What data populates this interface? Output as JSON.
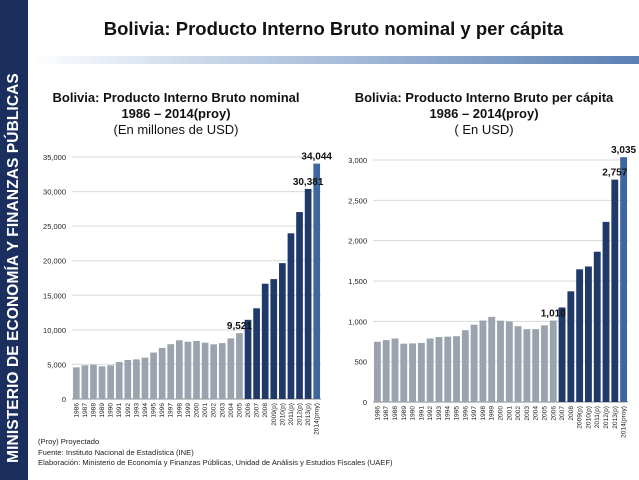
{
  "sidebar": {
    "text": "MINISTERIO DE ECONOMÍA Y FINANZAS PÚBLICAS"
  },
  "slide_title": "Bolivia: Producto Interno Bruto nominal y per cápita",
  "colors": {
    "sidebar": "#1b2f5e",
    "historic_bar": "#9aa3ae",
    "projected_bar": "#1f3a6a",
    "last_bar": "#3f679f"
  },
  "footer": {
    "line1": "(Proy) Proyectado",
    "line2": "Fuente: Instituto Nacional de Estadística (INE)",
    "line3": "Elaboración: Ministerio de Economía y Finanzas Públicas, Unidad de Análisis y Estudios Fiscales (UAEF)"
  },
  "chart_data": [
    {
      "type": "bar",
      "title": "Bolivia: Producto Interno Bruto nominal",
      "subtitle": "1986 – 2014(proy)",
      "units": "(En millones de USD)",
      "categories": [
        "1986",
        "1987",
        "1988",
        "1989",
        "1990",
        "1991",
        "1992",
        "1993",
        "1994",
        "1995",
        "1996",
        "1997",
        "1998",
        "1999",
        "2000",
        "2001",
        "2002",
        "2003",
        "2004",
        "2005",
        "2006",
        "2007",
        "2008",
        "2009(p)",
        "2010(p)",
        "2011(p)",
        "2012(p)",
        "2013(p)",
        "2014(proy)"
      ],
      "values": [
        4579,
        4865,
        4956,
        4717,
        4868,
        5343,
        5644,
        5735,
        5982,
        6715,
        7397,
        7926,
        8497,
        8285,
        8398,
        8142,
        7905,
        8082,
        8773,
        9521,
        11452,
        13120,
        16674,
        17340,
        19650,
        23963,
        27035,
        30381,
        34044
      ],
      "highlight_start_index": 20,
      "labels": [
        {
          "index": 19,
          "text": "9,521"
        },
        {
          "index": 27,
          "text": "30,381"
        },
        {
          "index": 28,
          "text": "34,044"
        }
      ],
      "ylim": [
        0,
        35000
      ],
      "yticks": [
        0,
        5000,
        10000,
        15000,
        20000,
        25000,
        30000,
        35000
      ],
      "ytick_labels": [
        "0",
        "5,000",
        "10,000",
        "15,000",
        "20,000",
        "25,000",
        "30,000",
        "35,000"
      ],
      "grid": true,
      "legend": "none"
    },
    {
      "type": "bar",
      "title": "Bolivia: Producto Interno Bruto per cápita",
      "subtitle": "1986 – 2014(proy)",
      "units": "( En USD)",
      "categories": [
        "1986",
        "1987",
        "1988",
        "1989",
        "1990",
        "1991",
        "1992",
        "1993",
        "1994",
        "1995",
        "1996",
        "1997",
        "1998",
        "1999",
        "2000",
        "2001",
        "2002",
        "2003",
        "2004",
        "2005",
        "2006",
        "2007",
        "2008",
        "2009(p)",
        "2010(p)",
        "2011(p)",
        "2012(p)",
        "2013(p)",
        "2014(proy)"
      ],
      "values": [
        747,
        767,
        787,
        723,
        726,
        733,
        787,
        805,
        810,
        816,
        890,
        958,
        1010,
        1055,
        1008,
        998,
        940,
        903,
        903,
        950,
        1010,
        1172,
        1372,
        1645,
        1680,
        1863,
        2233,
        2757,
        3035
      ],
      "highlight_start_index": 21,
      "labels": [
        {
          "index": 20,
          "text": "1,010"
        },
        {
          "index": 27,
          "text": "2,757"
        },
        {
          "index": 28,
          "text": "3,035"
        }
      ],
      "ylim": [
        0,
        3000
      ],
      "yticks": [
        0,
        500,
        1000,
        1500,
        2000,
        2500,
        3000
      ],
      "ytick_labels": [
        "0",
        "500",
        "1,000",
        "1,500",
        "2,000",
        "2,500",
        "3,000"
      ],
      "grid": true,
      "legend": "none"
    }
  ]
}
